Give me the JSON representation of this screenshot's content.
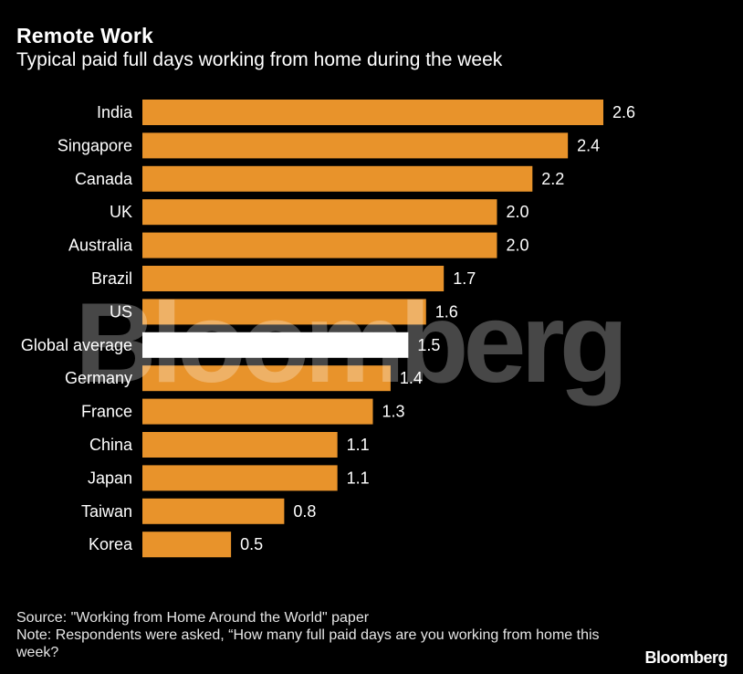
{
  "title": "Remote Work",
  "subtitle": "Typical paid full days working from home during the week",
  "chart_data": {
    "type": "bar",
    "orientation": "horizontal",
    "title": "Remote Work",
    "subtitle": "Typical paid full days working from home during the week",
    "categories": [
      "India",
      "Singapore",
      "Canada",
      "UK",
      "Australia",
      "Brazil",
      "US",
      "Global average",
      "Germany",
      "France",
      "China",
      "Japan",
      "Taiwan",
      "Korea"
    ],
    "values": [
      2.6,
      2.4,
      2.2,
      2.0,
      2.0,
      1.7,
      1.6,
      1.5,
      1.4,
      1.3,
      1.1,
      1.1,
      0.8,
      0.5
    ],
    "value_labels": [
      "2.6",
      "2.4",
      "2.2",
      "2.0",
      "2.0",
      "1.7",
      "1.6",
      "1.5",
      "1.4",
      "1.3",
      "1.1",
      "1.1",
      "0.8",
      "0.5"
    ],
    "highlight_category": "Global average",
    "xlim": [
      0,
      2.6
    ],
    "grid": false,
    "bar_color": "#E8932B",
    "highlight_color": "#FFFFFF"
  },
  "watermark": "Bloomberg",
  "footer": {
    "source": "Source: \"Working from Home Around the World\" paper",
    "note": "Note: Respondents were asked, “How many full paid days are you working from home this week?",
    "brand": "Bloomberg"
  },
  "colors": {
    "background": "#000000",
    "text": "#FFFFFF",
    "bar": "#E8932B",
    "highlight": "#FFFFFF"
  }
}
